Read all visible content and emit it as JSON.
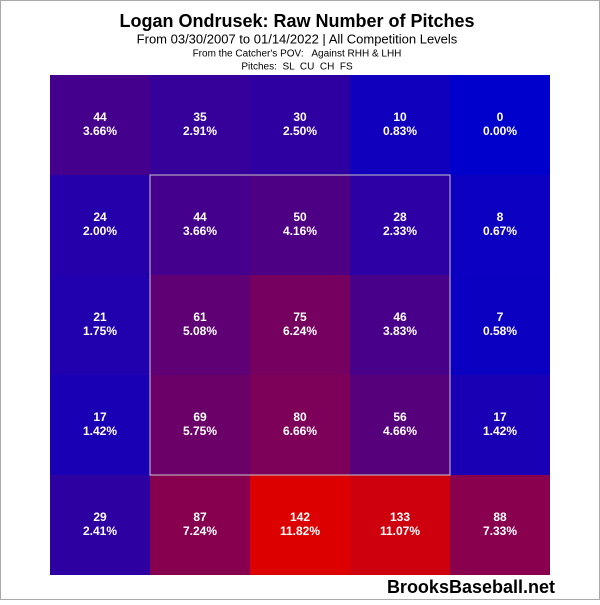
{
  "chart_data": {
    "type": "heatmap",
    "title": "Logan Ondrusek: Raw Number of Pitches",
    "subtitle": "From 03/30/2007 to 01/14/2022 | All Competition Levels",
    "notes": [
      "From the Catcher's POV:   Against RHH & LHH",
      "Pitches:  SL  CU  CH  FS"
    ],
    "footer": "BrooksBaseball.net",
    "colormap": [
      "#0000cc",
      "#dd0000"
    ],
    "zone_color": "#c8c8c8",
    "rows": [
      {
        "values": [
          44,
          35,
          30,
          10,
          0
        ],
        "percents": [
          3.66,
          2.91,
          2.5,
          0.83,
          0.0
        ],
        "percent_labels": [
          "3.66%",
          "2.91%",
          "2.50%",
          "0.83%",
          "0.00%"
        ]
      },
      {
        "values": [
          24,
          44,
          50,
          28,
          8
        ],
        "percents": [
          2.0,
          3.66,
          4.16,
          2.33,
          0.67
        ],
        "percent_labels": [
          "2.00%",
          "3.66%",
          "4.16%",
          "2.33%",
          "0.67%"
        ]
      },
      {
        "values": [
          21,
          61,
          75,
          46,
          7
        ],
        "percents": [
          1.75,
          5.08,
          6.24,
          3.83,
          0.58
        ],
        "percent_labels": [
          "1.75%",
          "5.08%",
          "6.24%",
          "3.83%",
          "0.58%"
        ]
      },
      {
        "values": [
          17,
          69,
          80,
          56,
          17
        ],
        "percents": [
          1.42,
          5.75,
          6.66,
          4.66,
          1.42
        ],
        "percent_labels": [
          "1.42%",
          "5.75%",
          "6.66%",
          "4.66%",
          "1.42%"
        ]
      },
      {
        "values": [
          29,
          87,
          142,
          133,
          88
        ],
        "percents": [
          2.41,
          7.24,
          11.82,
          11.07,
          7.33
        ],
        "percent_labels": [
          "2.41%",
          "7.24%",
          "11.82%",
          "11.07%",
          "7.33%"
        ]
      }
    ]
  }
}
